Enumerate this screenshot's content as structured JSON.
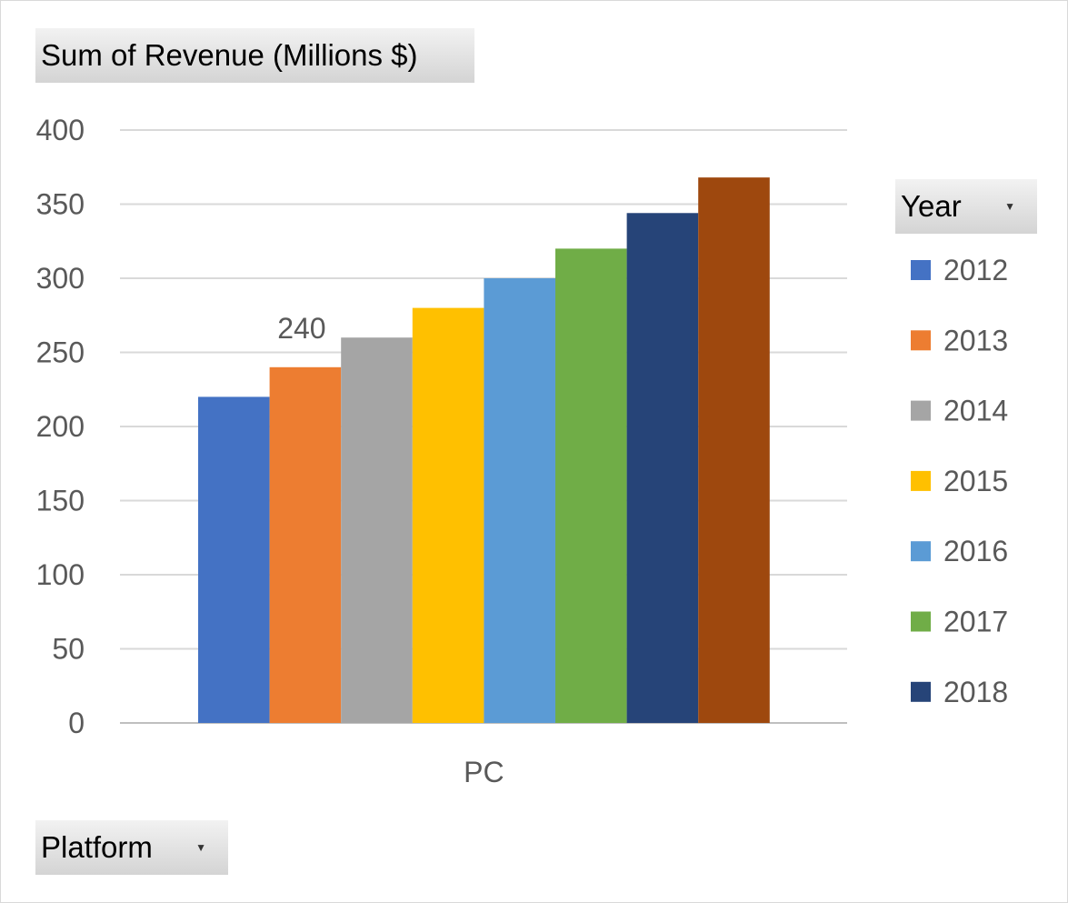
{
  "fields": {
    "value_field": "Sum of Revenue (Millions $)",
    "legend_field": "Year",
    "axis_field": "Platform"
  },
  "chart_data": {
    "type": "bar",
    "categories": [
      "PC"
    ],
    "series": [
      {
        "name": "2012",
        "values": [
          220
        ],
        "color": "#4472C4"
      },
      {
        "name": "2013",
        "values": [
          240
        ],
        "color": "#ED7D31",
        "data_label": "240"
      },
      {
        "name": "2014",
        "values": [
          260
        ],
        "color": "#A5A5A5"
      },
      {
        "name": "2015",
        "values": [
          280
        ],
        "color": "#FFC000"
      },
      {
        "name": "2016",
        "values": [
          300
        ],
        "color": "#5B9BD5"
      },
      {
        "name": "2017",
        "values": [
          320
        ],
        "color": "#70AD47"
      },
      {
        "name": "2018",
        "values": [
          344
        ],
        "color": "#264478"
      },
      {
        "name": "",
        "values": [
          368
        ],
        "color": "#9E480E"
      }
    ],
    "ylim": [
      0,
      400
    ],
    "yticks": [
      "0",
      "50",
      "100",
      "150",
      "200",
      "250",
      "300",
      "350",
      "400"
    ],
    "grid": true,
    "legend_position": "right"
  }
}
